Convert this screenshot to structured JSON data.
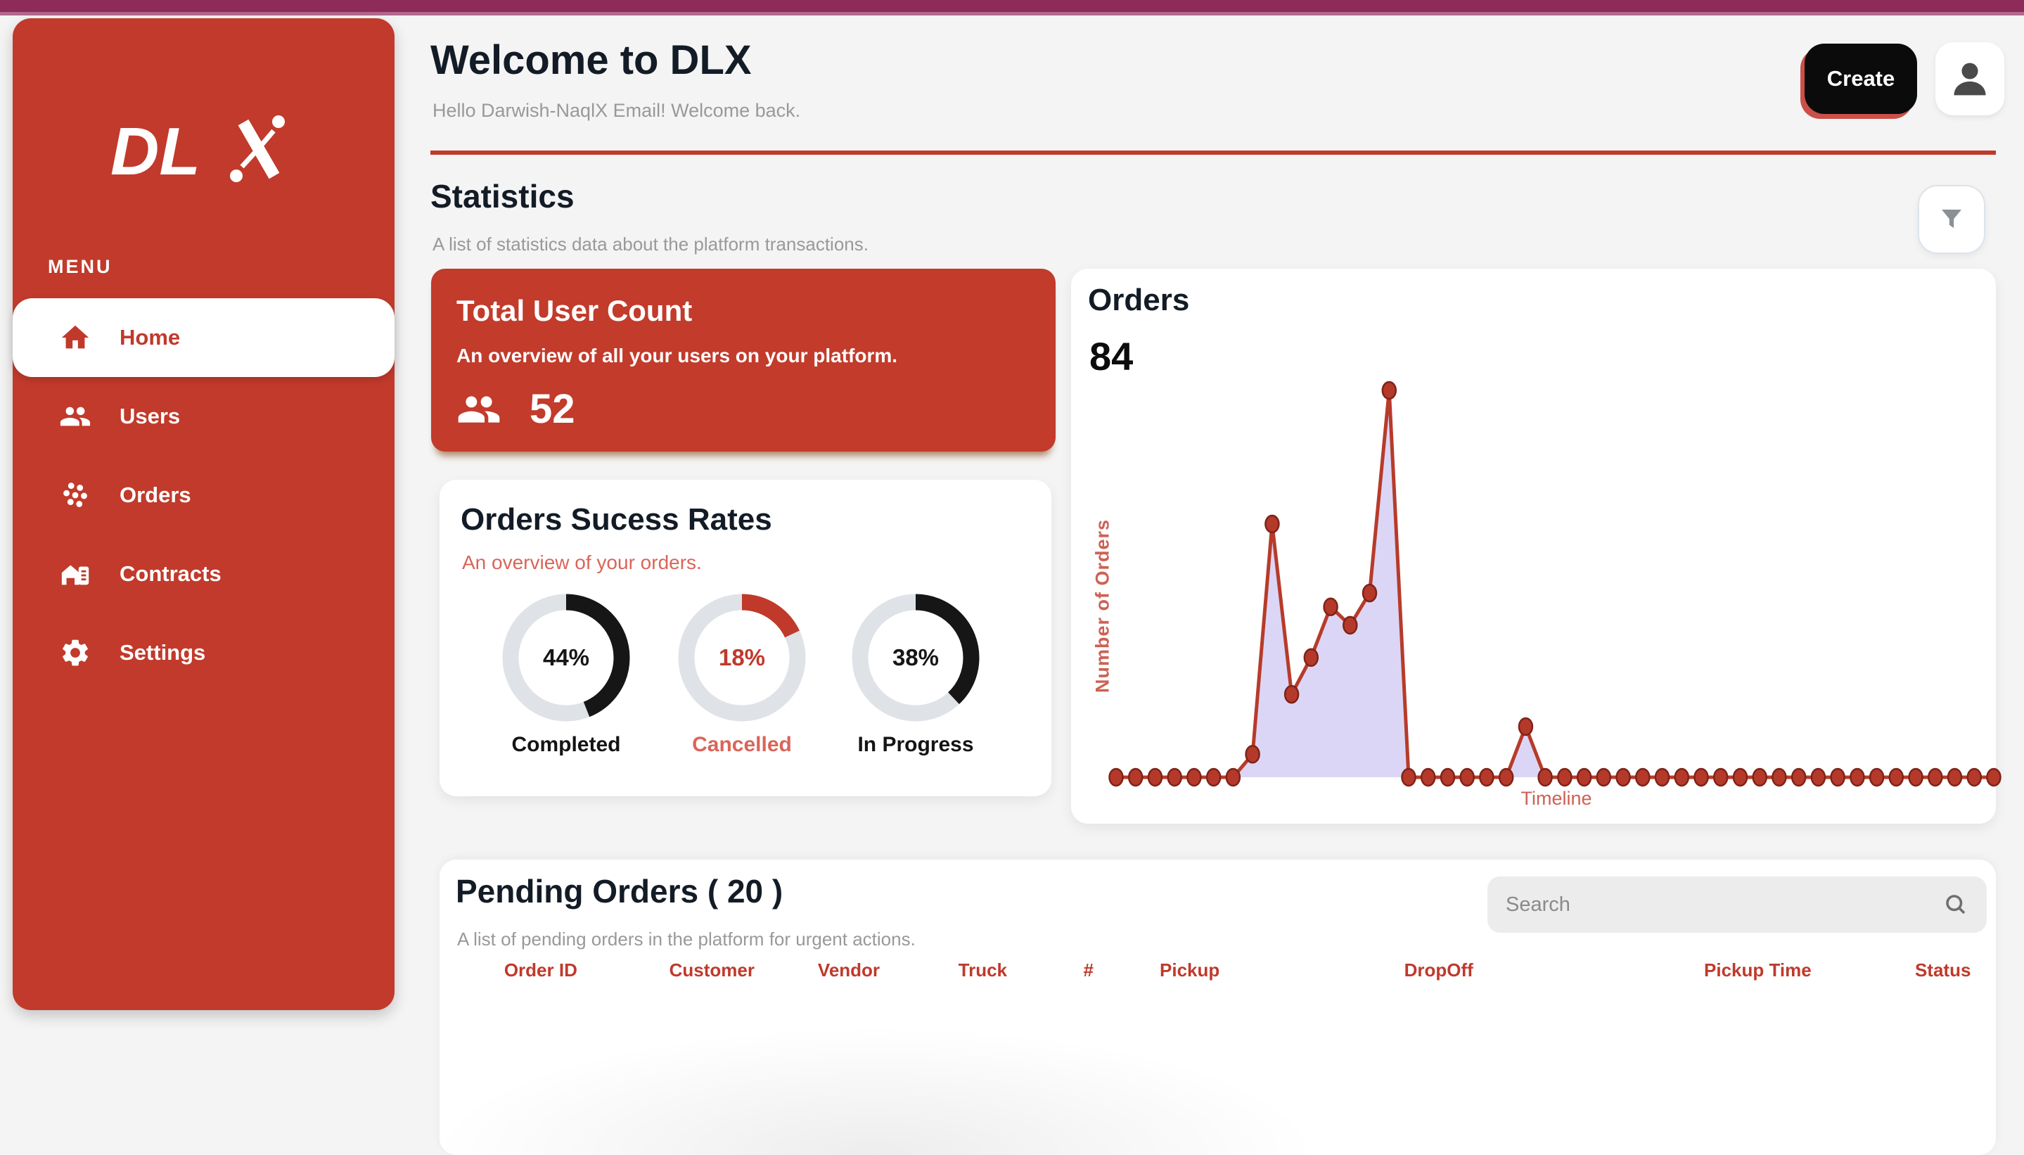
{
  "sidebar": {
    "logo": "DLX",
    "logo_prefix": "DL",
    "menu_label": "MENU",
    "items": [
      {
        "label": "Home",
        "active": true
      },
      {
        "label": "Users",
        "active": false
      },
      {
        "label": "Orders",
        "active": false
      },
      {
        "label": "Contracts",
        "active": false
      },
      {
        "label": "Settings",
        "active": false
      }
    ]
  },
  "header": {
    "title": "Welcome to DLX",
    "greeting": "Hello Darwish-NaqlX Email! Welcome back.",
    "create_label": "Create"
  },
  "statistics": {
    "title": "Statistics",
    "subtitle": "A list of statistics data about the platform transactions."
  },
  "user_count_card": {
    "title": "Total User Count",
    "subtitle": "An overview of all your users on your platform.",
    "count": "52"
  },
  "success_card": {
    "title": "Orders Sucess Rates",
    "subtitle": "An overview of your orders.",
    "donuts": [
      {
        "percent": 44,
        "percent_label": "44%",
        "label": "Completed",
        "color": "#161616"
      },
      {
        "percent": 18,
        "percent_label": "18%",
        "label": "Cancelled",
        "color": "#c0392b"
      },
      {
        "percent": 38,
        "percent_label": "38%",
        "label": "In Progress",
        "color": "#161616"
      }
    ]
  },
  "orders_card": {
    "title": "Orders",
    "total": "84"
  },
  "chart_data": {
    "type": "area",
    "title": "Orders",
    "total_orders": 84,
    "xlabel": "Timeline",
    "ylabel": "Number of Orders",
    "x_points": 46,
    "values": [
      0,
      0,
      0,
      0,
      0,
      0,
      0,
      5,
      55,
      18,
      26,
      37,
      33,
      40,
      84,
      0,
      0,
      0,
      0,
      0,
      0,
      11,
      0,
      0,
      0,
      0,
      0,
      0,
      0,
      0,
      0,
      0,
      0,
      0,
      0,
      0,
      0,
      0,
      0,
      0,
      0,
      0,
      0,
      0,
      0,
      0
    ],
    "ylim": [
      0,
      84
    ],
    "grid": false,
    "legend": false,
    "line_color": "#b73b2a",
    "fill_color": "#dcd6f6",
    "dot_color": "#b5392a",
    "dot_stroke": "#7e2318",
    "label_color": "#cd6155"
  },
  "pending": {
    "title": "Pending Orders  ( 20 )",
    "subtitle": "A list of pending orders in the platform for urgent actions.",
    "search_placeholder": "Search",
    "columns": [
      "Order ID",
      "Customer",
      "Vendor",
      "Truck",
      "#",
      "Pickup",
      "DropOff",
      "Pickup Time",
      "Status"
    ]
  },
  "colors": {
    "sidebar_red": "#c13a2b",
    "accent_red": "#c0392b",
    "topbar_dark": "#8e2b58",
    "topbar_light": "#b2688f",
    "heading": "#131c26",
    "muted": "#999999",
    "salmon": "#d9655a",
    "chart_fill": "#dcd6f6",
    "donut_track": "#dfe3e8",
    "black": "#161616"
  }
}
